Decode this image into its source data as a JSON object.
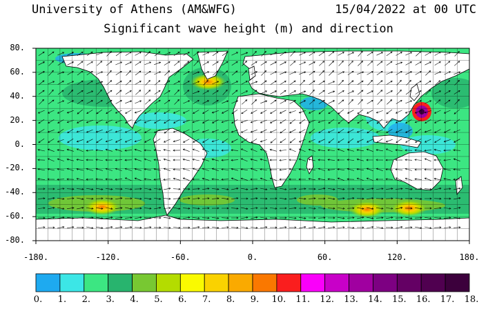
{
  "header": {
    "source": "University of Athens (AM&WFG)",
    "datetime": "15/04/2022 at 00 UTC",
    "title": "Significant wave height (m) and direction"
  },
  "chart_data": {
    "type": "heatmap",
    "variable": "Significant wave height",
    "units": "m",
    "xlim": [
      -180,
      180
    ],
    "ylim": [
      -80,
      80
    ],
    "x_ticks": [
      "-180.",
      "-120.",
      "-60.",
      "0.",
      "60.",
      "120.",
      "180."
    ],
    "x_tick_values": [
      -180,
      -120,
      -60,
      0,
      60,
      120,
      180
    ],
    "y_ticks": [
      "80.",
      "60.",
      "40.",
      "20.",
      "0.",
      "-20.",
      "-40.",
      "-60.",
      "-80."
    ],
    "y_tick_values": [
      80,
      60,
      40,
      20,
      0,
      -20,
      -40,
      -60,
      -80
    ],
    "colorbar": {
      "labels": [
        "0.",
        "1.",
        "2.",
        "3.",
        "4.",
        "5.",
        "6.",
        "7.",
        "8.",
        "9.",
        "10.",
        "11.",
        "12.",
        "13.",
        "14.",
        "15.",
        "16.",
        "17.",
        "18."
      ],
      "colors": [
        "#1eaaf0",
        "#3ce6e6",
        "#3ce682",
        "#28b46e",
        "#78c832",
        "#b4dc00",
        "#fafa00",
        "#fad200",
        "#faaa00",
        "#fa7800",
        "#fa1e1e",
        "#fa00fa",
        "#c800c8",
        "#a000a0",
        "#7d0082",
        "#640064",
        "#500050",
        "#3c003c",
        "#1e001e"
      ]
    },
    "highlights": [
      {
        "region": "North Atlantic near Greenland",
        "lon": -37,
        "lat": 52,
        "value_m": 6
      },
      {
        "region": "Typhoon east of Philippines",
        "lon": 140,
        "lat": 27,
        "value_m": 14
      },
      {
        "region": "South Pacific",
        "lon": -125,
        "lat": -52,
        "value_m": 7
      },
      {
        "region": "Southern Indian Ocean",
        "lon": 95,
        "lat": -54,
        "value_m": 7
      },
      {
        "region": "South of Australia",
        "lon": 130,
        "lat": -53,
        "value_m": 7
      }
    ]
  }
}
